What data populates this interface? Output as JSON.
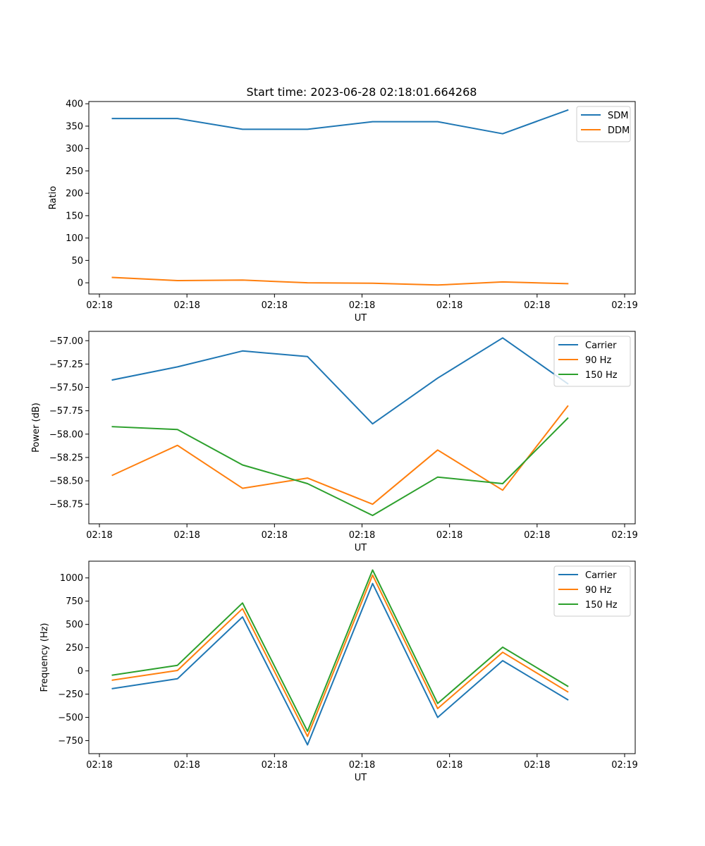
{
  "figure": {
    "title": "Start time: 2023-06-28 02:18:01.664268"
  },
  "chart_data": [
    {
      "type": "line",
      "title": "Start time: 2023-06-28 02:18:01.664268",
      "xlabel": "UT",
      "ylabel": "Ratio",
      "x": [
        1,
        2,
        3,
        4,
        5,
        6,
        7,
        8
      ],
      "xlim": [
        0.8,
        9.2
      ],
      "xticks": [
        {
          "value": 0.8,
          "label": "02:18"
        },
        {
          "value": 2.325,
          "label": "02:18"
        },
        {
          "value": 3.85,
          "label": "02:18"
        },
        {
          "value": 5.375,
          "label": "02:18"
        },
        {
          "value": 6.9,
          "label": "02:18"
        },
        {
          "value": 8.425,
          "label": "02:18"
        },
        {
          "value": 9.95,
          "label": "02:19"
        }
      ],
      "ylim": [
        -25,
        405
      ],
      "yticks": [
        0,
        50,
        100,
        150,
        200,
        250,
        300,
        350,
        400
      ],
      "ytick_decimals": 0,
      "legend": "top-right",
      "grid": false,
      "series": [
        {
          "name": "SDM",
          "color": "#1f77b4",
          "values": [
            367,
            367,
            343,
            343,
            360,
            360,
            333,
            386
          ]
        },
        {
          "name": "DDM",
          "color": "#ff7f0e",
          "values": [
            12,
            5,
            6,
            0,
            -1,
            -5,
            2,
            -2
          ]
        }
      ]
    },
    {
      "type": "line",
      "xlabel": "UT",
      "ylabel": "Power (dB)",
      "x": [
        1,
        2,
        3,
        4,
        5,
        6,
        7,
        8
      ],
      "xlim": [
        0.8,
        9.2
      ],
      "xticks": [
        {
          "value": 0.8,
          "label": "02:18"
        },
        {
          "value": 2.325,
          "label": "02:18"
        },
        {
          "value": 3.85,
          "label": "02:18"
        },
        {
          "value": 5.375,
          "label": "02:18"
        },
        {
          "value": 6.9,
          "label": "02:18"
        },
        {
          "value": 8.425,
          "label": "02:18"
        },
        {
          "value": 9.95,
          "label": "02:19"
        }
      ],
      "ylim": [
        -58.96,
        -56.9
      ],
      "yticks": [
        -58.75,
        -58.5,
        -58.25,
        -58.0,
        -57.75,
        -57.5,
        -57.25,
        -57.0
      ],
      "ytick_decimals": 2,
      "legend": "top-right",
      "grid": false,
      "series": [
        {
          "name": "Carrier",
          "color": "#1f77b4",
          "values": [
            -57.42,
            -57.28,
            -57.11,
            -57.17,
            -57.89,
            -57.4,
            -56.97,
            -57.46
          ]
        },
        {
          "name": "90 Hz",
          "color": "#ff7f0e",
          "values": [
            -58.44,
            -58.12,
            -58.58,
            -58.47,
            -58.75,
            -58.17,
            -58.6,
            -57.7
          ]
        },
        {
          "name": "150 Hz",
          "color": "#2ca02c",
          "values": [
            -57.92,
            -57.95,
            -58.33,
            -58.53,
            -58.87,
            -58.46,
            -58.53,
            -57.83
          ]
        }
      ]
    },
    {
      "type": "line",
      "xlabel": "UT",
      "ylabel": "Frequency (Hz)",
      "x": [
        1,
        2,
        3,
        4,
        5,
        6,
        7,
        8
      ],
      "xlim": [
        0.8,
        9.2
      ],
      "xticks": [
        {
          "value": 0.8,
          "label": "02:18"
        },
        {
          "value": 2.325,
          "label": "02:18"
        },
        {
          "value": 3.85,
          "label": "02:18"
        },
        {
          "value": 5.375,
          "label": "02:18"
        },
        {
          "value": 6.9,
          "label": "02:18"
        },
        {
          "value": 8.425,
          "label": "02:18"
        },
        {
          "value": 9.95,
          "label": "02:19"
        }
      ],
      "ylim": [
        -890,
        1180
      ],
      "yticks": [
        -750,
        -500,
        -250,
        0,
        250,
        500,
        750,
        1000
      ],
      "ytick_decimals": 0,
      "legend": "top-right",
      "grid": false,
      "series": [
        {
          "name": "Carrier",
          "color": "#1f77b4",
          "values": [
            -190,
            -85,
            580,
            -795,
            940,
            -500,
            110,
            -310
          ]
        },
        {
          "name": "90 Hz",
          "color": "#ff7f0e",
          "values": [
            -100,
            5,
            670,
            -705,
            1030,
            -405,
            200,
            -225
          ]
        },
        {
          "name": "150 Hz",
          "color": "#2ca02c",
          "values": [
            -45,
            60,
            730,
            -650,
            1085,
            -350,
            255,
            -165
          ]
        }
      ]
    }
  ]
}
